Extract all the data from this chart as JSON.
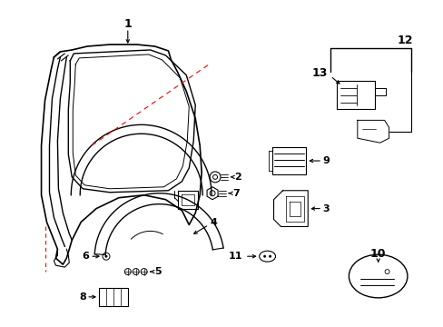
{
  "background_color": "#ffffff",
  "line_color": "#000000",
  "red_color": "#ff0000",
  "figsize": [
    4.89,
    3.6
  ],
  "dpi": 100
}
